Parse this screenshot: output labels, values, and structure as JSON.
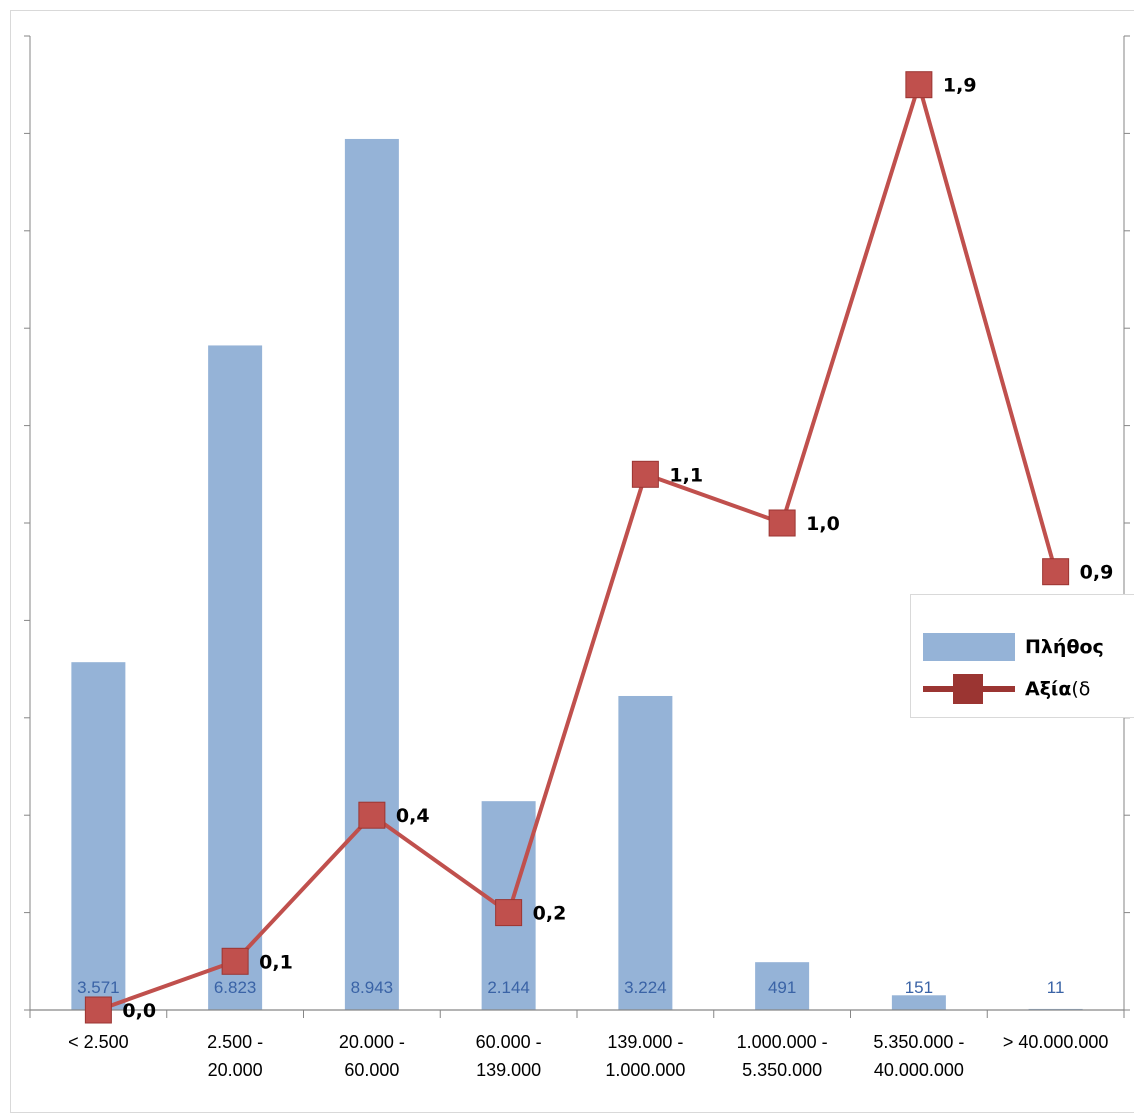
{
  "chart_data": {
    "type": "bar",
    "title": "",
    "xlabel": "",
    "ylabel": "",
    "categories": [
      [
        "< 2.500"
      ],
      [
        "2.500 -",
        "20.000"
      ],
      [
        "20.000 -",
        "60.000"
      ],
      [
        "60.000 -",
        "139.000"
      ],
      [
        "139.000 -",
        "1.000.000"
      ],
      [
        "1.000.000 -",
        "5.350.000"
      ],
      [
        "5.350.000 -",
        "40.000.000"
      ],
      [
        "> 40.000.000"
      ]
    ],
    "series": [
      {
        "name": "Πλήθος",
        "type": "bar",
        "axis": "left",
        "color": "#95b3d7",
        "values": [
          3571,
          6823,
          8943,
          2144,
          3224,
          491,
          151,
          11
        ],
        "labels": [
          "3.571",
          "6.823",
          "8.943",
          "2.144",
          "3.224",
          "491",
          "151",
          "11"
        ]
      },
      {
        "name": "Αξία (δ",
        "type": "line",
        "axis": "right",
        "color": "#c0504d",
        "values": [
          0.0,
          0.1,
          0.4,
          0.2,
          1.1,
          1.0,
          1.9,
          0.9
        ],
        "labels": [
          "0,0",
          "0,1",
          "0,4",
          "0,2",
          "1,1",
          "1,0",
          "1,9",
          "0,9"
        ]
      }
    ],
    "left_axis_range": [
      0,
      10000
    ],
    "right_axis_range": [
      0,
      2.0
    ],
    "grid": false,
    "legend": {
      "position": "right",
      "entries": [
        {
          "bold": "Πλήθος",
          "rest": ""
        },
        {
          "bold": "Αξία",
          "rest": " (δ"
        }
      ]
    }
  }
}
